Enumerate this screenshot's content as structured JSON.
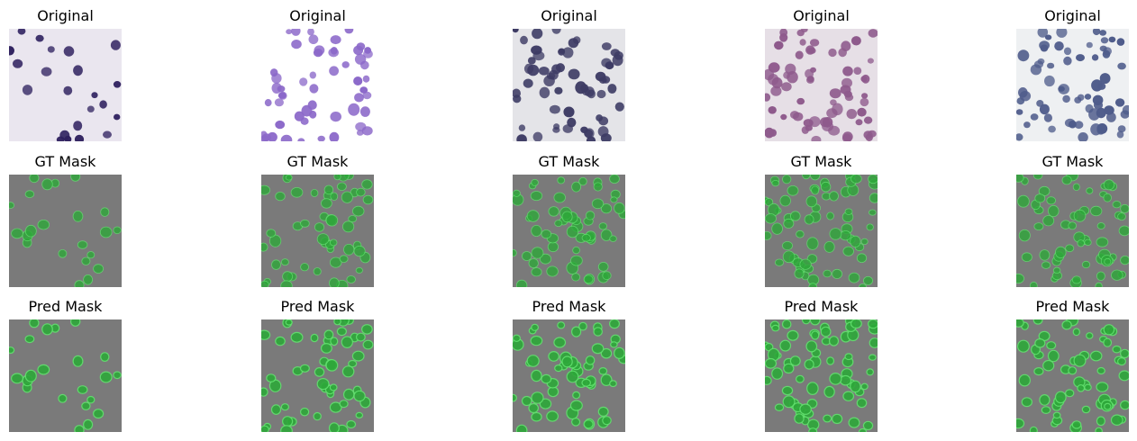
{
  "rows": [
    {
      "title": "Original",
      "kind": "original"
    },
    {
      "title": "GT Mask",
      "kind": "mask"
    },
    {
      "title": "Pred Mask",
      "kind": "mask"
    }
  ],
  "columns": [
    {
      "style": "dark-sparse",
      "cell_color": "#2e205e",
      "bg_color": "#eae6ef"
    },
    {
      "style": "light-dense",
      "cell_color": "#8b68c9",
      "bg_color": "#ffffff"
    },
    {
      "style": "dark-dense",
      "cell_color": "#3d3b64",
      "bg_color": "#e4e4e8"
    },
    {
      "style": "stained-dense",
      "cell_color": "#8e5a8c",
      "bg_color": "#e6dfe6"
    },
    {
      "style": "blue-dense",
      "cell_color": "#4f5c8b",
      "bg_color": "#eef0f2"
    }
  ],
  "mask_colors": {
    "background": "#7a7a7a",
    "cell_fill": "#2ea83a",
    "cell_edge": "#62e06e"
  }
}
